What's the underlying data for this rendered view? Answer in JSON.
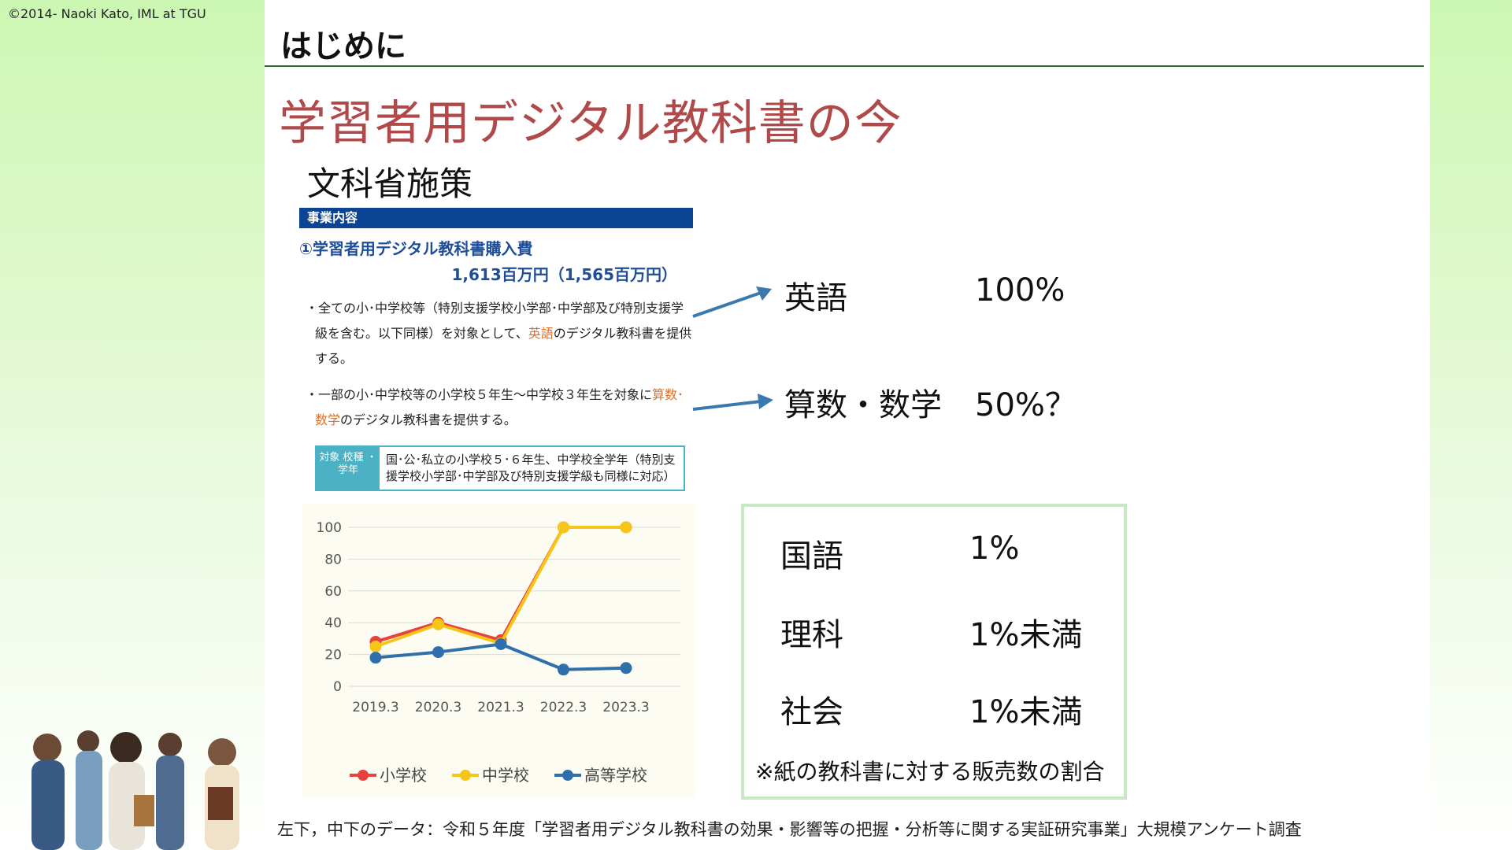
{
  "copyright": "©2014- Naoki Kato, IML at TGU",
  "header": {
    "title": "はじめに"
  },
  "main_title": "学習者用デジタル教科書の今",
  "section_title": "文科省施策",
  "document": {
    "banner": "事業内容",
    "item_title": "①学習者用デジタル教科書購入費",
    "amount": "1,613百万円（1,565百万円）",
    "para1": {
      "pre": "・全ての小･中学校等（特別支援学校小学部･中学部及び特別支援学級を含む。以下同様）を対象として、",
      "highlight": "英語",
      "post": "のデジタル教科書を提供する。"
    },
    "para2": {
      "pre": "・一部の小･中学校等の小学校５年生～中学校３年生を対象に",
      "highlight": "算数･数学",
      "post": "のデジタル教科書を提供する。"
    },
    "target_label": "対象 校種 ・ 学年",
    "target_text": "国･公･私立の小学校５･６年生、中学校全学年（特別支援学校小学部･中学部及び特別支援学級も同様に対応）"
  },
  "subjects_top": [
    {
      "name": "英語",
      "value": "100%"
    },
    {
      "name": "算数・数学",
      "value": "50%？"
    }
  ],
  "subjects_box": [
    {
      "name": "国語",
      "value": "1%"
    },
    {
      "name": "理科",
      "value": "1%未満"
    },
    {
      "name": "社会",
      "value": "1%未満"
    }
  ],
  "box_note": "※紙の教科書に対する販売数の割合",
  "footnote": "左下，中下のデータ：令和５年度「学習者用デジタル教科書の効果・影響等の把握・分析等に関する実証研究事業」大規模アンケート調査",
  "colors": {
    "accent_title": "#b04a4a",
    "doc_blue": "#0c4494",
    "arrow": "#3a78b0"
  },
  "chart_data": {
    "type": "line",
    "categories": [
      "2019.3",
      "2020.3",
      "2021.3",
      "2022.3",
      "2023.3"
    ],
    "series": [
      {
        "name": "小学校",
        "color": "#e8423e",
        "values": [
          28,
          40,
          29,
          100,
          100
        ]
      },
      {
        "name": "中学校",
        "color": "#f5c518",
        "values": [
          25,
          39,
          27,
          100,
          100
        ]
      },
      {
        "name": "高等学校",
        "color": "#2f6fac",
        "values": [
          18,
          21.5,
          26.5,
          10.5,
          11.5
        ]
      }
    ],
    "ylim": [
      0,
      100
    ],
    "yticks": [
      "0",
      "20",
      "40",
      "60",
      "80",
      "100"
    ],
    "grid": true,
    "legend": "bottom"
  }
}
